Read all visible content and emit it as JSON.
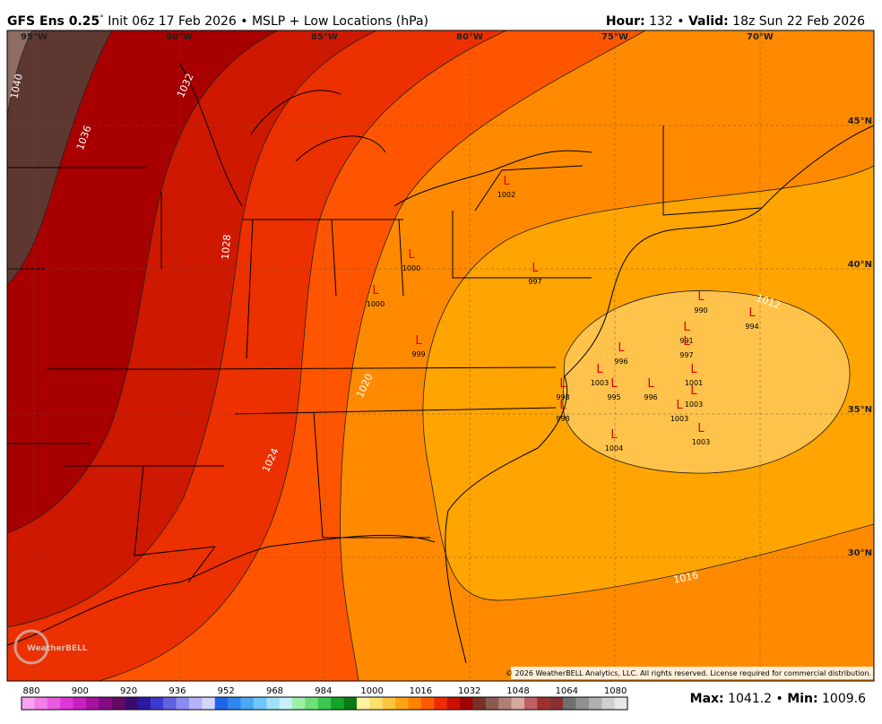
{
  "header": {
    "left": [
      "GFS Ens 0.25",
      "°",
      " Init 06z 17 Feb 2026 • MSLP + Low Locations (hPa)"
    ],
    "right": [
      "Hour:",
      " 132 • ",
      "Valid:",
      " 18z Sun 22 Feb 2026"
    ]
  },
  "longitude_labels": [
    "95°W",
    "90°W",
    "85°W",
    "80°W",
    "75°W",
    "70°W"
  ],
  "latitude_labels": [
    "45°N",
    "40°N",
    "35°N",
    "30°N"
  ],
  "contour_labels": [
    "1040",
    "1036",
    "1032",
    "1028",
    "1024",
    "1020",
    "1016",
    "1012"
  ],
  "lows": [
    {
      "marker": "L",
      "pressure": "1002"
    },
    {
      "marker": "L",
      "pressure": "1000"
    },
    {
      "marker": "L",
      "pressure": "997"
    },
    {
      "marker": "L",
      "pressure": "1000"
    },
    {
      "marker": "L",
      "pressure": "999"
    },
    {
      "marker": "L",
      "pressure": "990"
    },
    {
      "marker": "L",
      "pressure": "994"
    },
    {
      "marker": "L",
      "pressure": "991"
    },
    {
      "marker": "L",
      "pressure": "997"
    },
    {
      "marker": "L",
      "pressure": "996"
    },
    {
      "marker": "L",
      "pressure": "1001"
    },
    {
      "marker": "L",
      "pressure": "1003"
    },
    {
      "marker": "L",
      "pressure": "995"
    },
    {
      "marker": "L",
      "pressure": "996"
    },
    {
      "marker": "L",
      "pressure": "1003"
    },
    {
      "marker": "L",
      "pressure": "998"
    },
    {
      "marker": "L",
      "pressure": "998"
    },
    {
      "marker": "L",
      "pressure": "1003"
    },
    {
      "marker": "L",
      "pressure": "1004"
    },
    {
      "marker": "L",
      "pressure": "1003"
    }
  ],
  "watermark": "WeatherBELL",
  "copyright": "© 2026 WeatherBELL Analytics, LLC. All rights reserved. License required for commercial distribution.",
  "colorbar_labels": [
    "880",
    "900",
    "920",
    "936",
    "952",
    "968",
    "984",
    "1000",
    "1016",
    "1032",
    "1048",
    "1064",
    "1080"
  ],
  "footer": [
    "Max:",
    " 1041.2 • ",
    "Min:",
    " 1009.6"
  ]
}
